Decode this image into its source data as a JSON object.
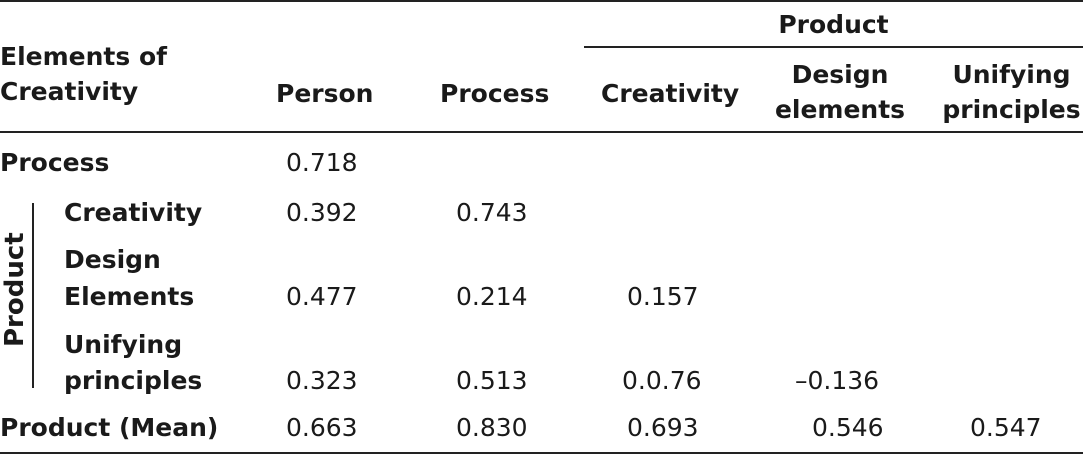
{
  "header": {
    "elements_of_creativity": [
      "Elements of",
      "Creativity"
    ],
    "person": "Person",
    "process": "Process",
    "product_group": "Product",
    "creativity": "Creativity",
    "design_elements": [
      "Design",
      "elements"
    ],
    "unifying_principles": [
      "Unifying",
      "principles"
    ]
  },
  "side_label": "Product",
  "rows": [
    {
      "label": [
        "Process"
      ],
      "values": [
        "0.718",
        "",
        "",
        "",
        ""
      ]
    },
    {
      "label": [
        "Creativity"
      ],
      "values": [
        "0.392",
        "0.743",
        "",
        "",
        ""
      ]
    },
    {
      "label": [
        "Design",
        "Elements"
      ],
      "values": [
        "0.477",
        "0.214",
        "0.157",
        "",
        ""
      ]
    },
    {
      "label": [
        "Unifying",
        "principles"
      ],
      "values": [
        "0.323",
        "0.513",
        "0.0.76",
        "–0.136",
        ""
      ]
    },
    {
      "label": [
        "Product (Mean)"
      ],
      "values": [
        "0.663",
        "0.830",
        "0.693",
        "0.546",
        "0.547"
      ]
    }
  ]
}
